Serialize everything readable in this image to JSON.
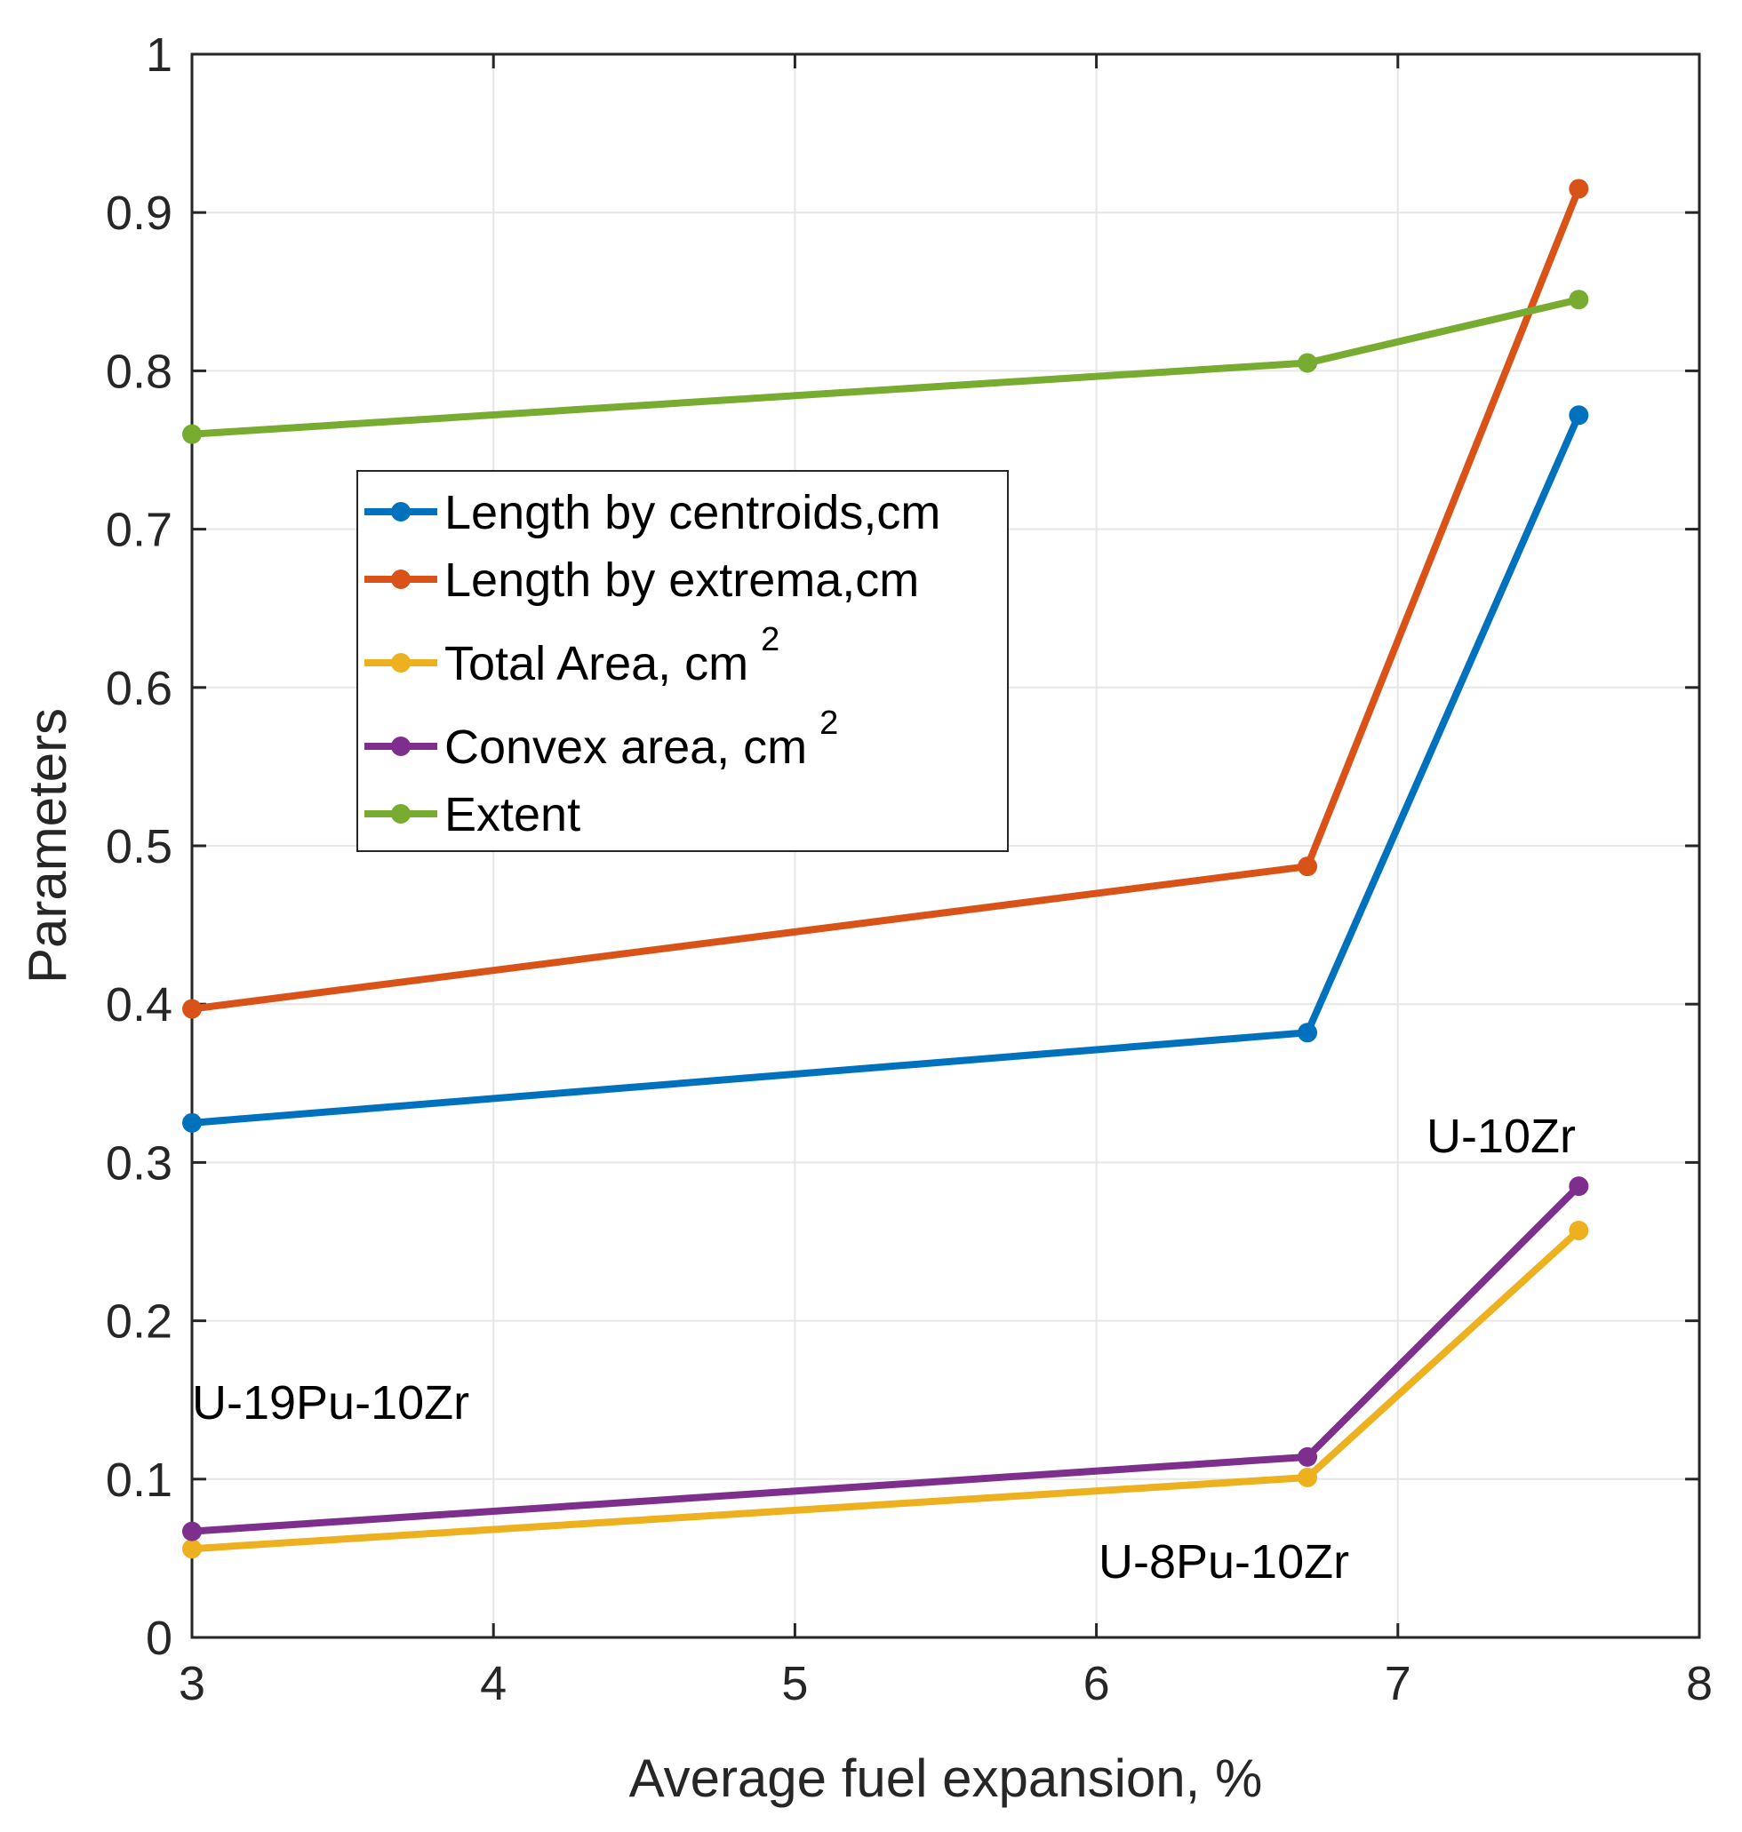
{
  "chart_data": {
    "type": "line",
    "xlabel": "Average fuel expansion, %",
    "ylabel": "Parameters",
    "xlim": [
      3,
      8
    ],
    "ylim": [
      0,
      1
    ],
    "xticks": [
      "3",
      "4",
      "5",
      "6",
      "7",
      "8"
    ],
    "yticks": [
      "0",
      "0.1",
      "0.2",
      "0.3",
      "0.4",
      "0.5",
      "0.6",
      "0.7",
      "0.8",
      "0.9",
      "1"
    ],
    "grid": true,
    "legend_position": "upper-left-center",
    "x": [
      3.0,
      6.7,
      7.6
    ],
    "series": [
      {
        "name": "Length by centroids,cm",
        "color": "#0072BD",
        "values": [
          0.325,
          0.382,
          0.772
        ]
      },
      {
        "name": "Length by extrema,cm",
        "color": "#D95319",
        "values": [
          0.397,
          0.487,
          0.915
        ]
      },
      {
        "name": "Total Area, cm",
        "superscript": "2",
        "color": "#EDB120",
        "values": [
          0.056,
          0.101,
          0.257
        ]
      },
      {
        "name": "Convex area, cm",
        "superscript": "2",
        "color": "#7E2F8E",
        "values": [
          0.067,
          0.114,
          0.285
        ]
      },
      {
        "name": "Extent",
        "color": "#77AC30",
        "values": [
          0.76,
          0.805,
          0.845
        ]
      }
    ],
    "annotations": [
      {
        "text": "U-10Zr",
        "x": 7.6,
        "y": 0.3
      },
      {
        "text": "U-19Pu-10Zr",
        "x": 3.0,
        "y": 0.15
      },
      {
        "text": "U-8Pu-10Zr",
        "x": 6.7,
        "y": 0.05
      }
    ]
  }
}
